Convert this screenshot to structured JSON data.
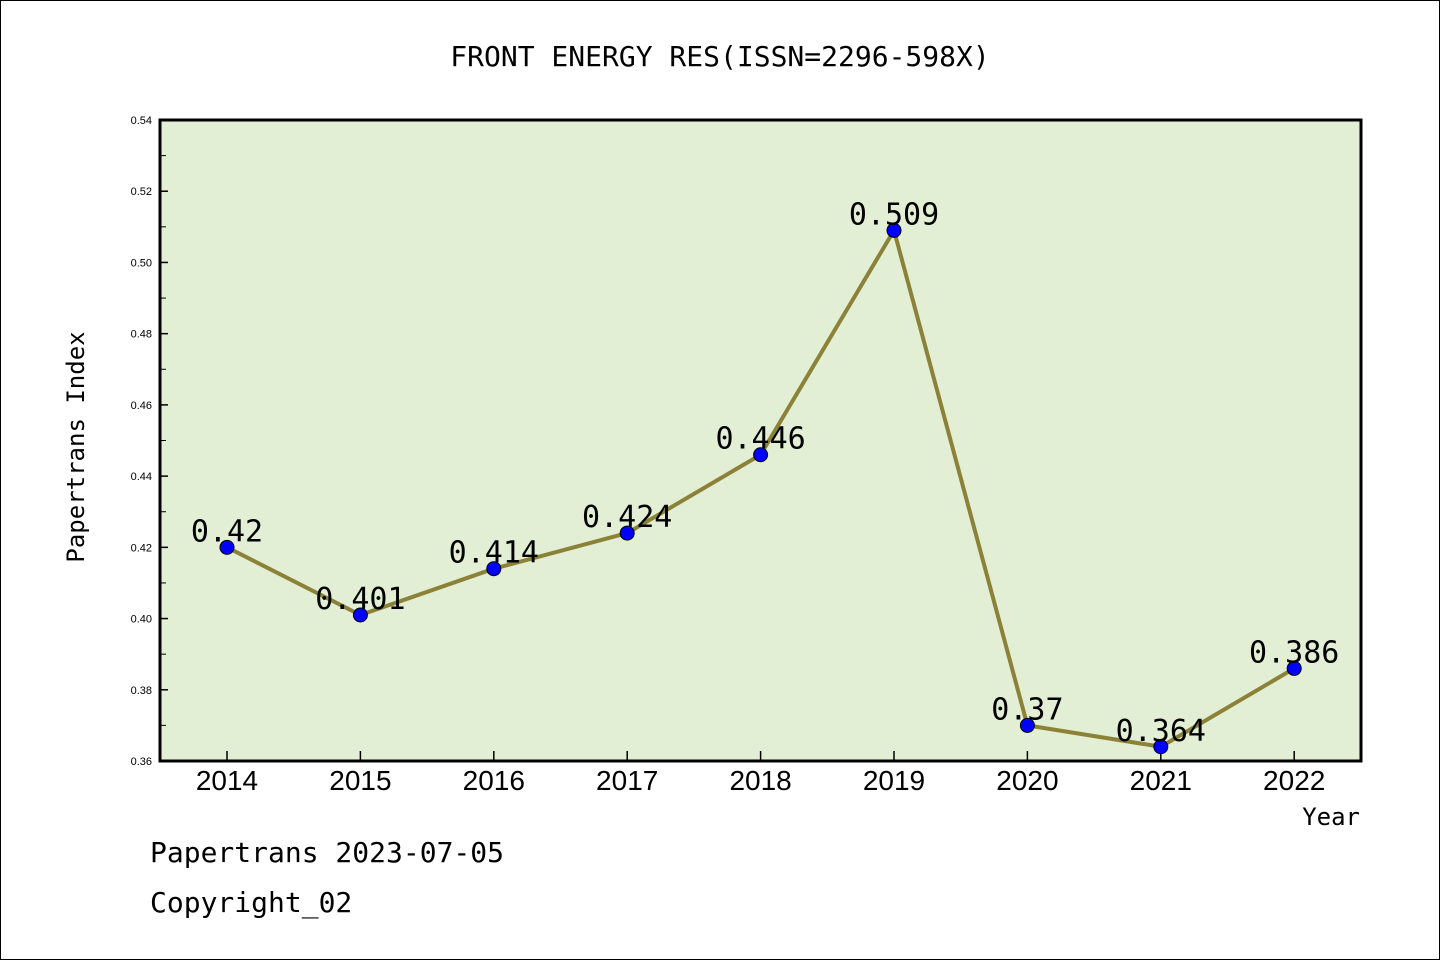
{
  "chart_data": {
    "type": "line",
    "title": "FRONT ENERGY RES(ISSN=2296-598X)",
    "xlabel": "Year",
    "ylabel": "Papertrans Index",
    "categories": [
      "2014",
      "2015",
      "2016",
      "2017",
      "2018",
      "2019",
      "2020",
      "2021",
      "2022"
    ],
    "values": [
      0.42,
      0.401,
      0.414,
      0.424,
      0.446,
      0.509,
      0.37,
      0.364,
      0.386
    ],
    "data_labels": [
      "0.42",
      "0.401",
      "0.414",
      "0.424",
      "0.446",
      "0.509",
      "0.37",
      "0.364",
      "0.386"
    ],
    "ylim": [
      0.36,
      0.54
    ],
    "yticks": [
      "0.36",
      "0.38",
      "0.40",
      "0.42",
      "0.44",
      "0.46",
      "0.48",
      "0.50",
      "0.52",
      "0.54"
    ],
    "grid": false,
    "colors": {
      "plot_background": "#e2efd5",
      "line": "#8b8238",
      "marker": "#0000ff"
    }
  },
  "footer": {
    "line1": "Papertrans 2023-07-05",
    "line2": "Copyright_02"
  }
}
